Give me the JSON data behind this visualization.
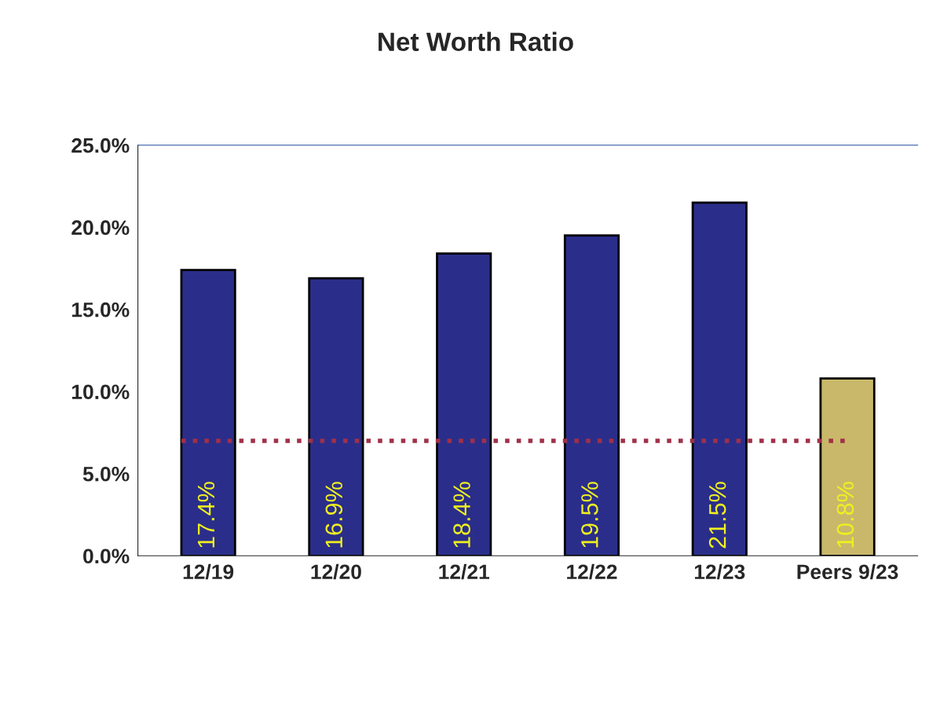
{
  "chart_data": {
    "type": "bar",
    "title": "Net Worth Ratio",
    "categories": [
      "12/19",
      "12/20",
      "12/21",
      "12/22",
      "12/23",
      "Peers 9/23"
    ],
    "values": [
      17.4,
      16.9,
      18.4,
      19.5,
      21.5,
      10.8
    ],
    "colors": [
      "#1a1f9a",
      "#1a1f9a",
      "#1a1f9a",
      "#1a1f9a",
      "#1a1f9a",
      "#d9c25a"
    ],
    "value_labels": [
      "17.4%",
      "16.9%",
      "18.4%",
      "19.5%",
      "21.5%",
      "10.8%"
    ],
    "ylim": [
      0,
      25
    ],
    "yticks": [
      {
        "value": 0,
        "label": "0.0%"
      },
      {
        "value": 5,
        "label": "5.0%"
      },
      {
        "value": 10,
        "label": "10.0%"
      },
      {
        "value": 15,
        "label": "15.0%"
      },
      {
        "value": 20,
        "label": "20.0%"
      },
      {
        "value": 25,
        "label": "25.0%"
      }
    ],
    "ref_lines": [
      {
        "axis": "y",
        "value": 7.0,
        "color": "#a03048",
        "line_style": "dotted"
      }
    ],
    "grid": false
  }
}
